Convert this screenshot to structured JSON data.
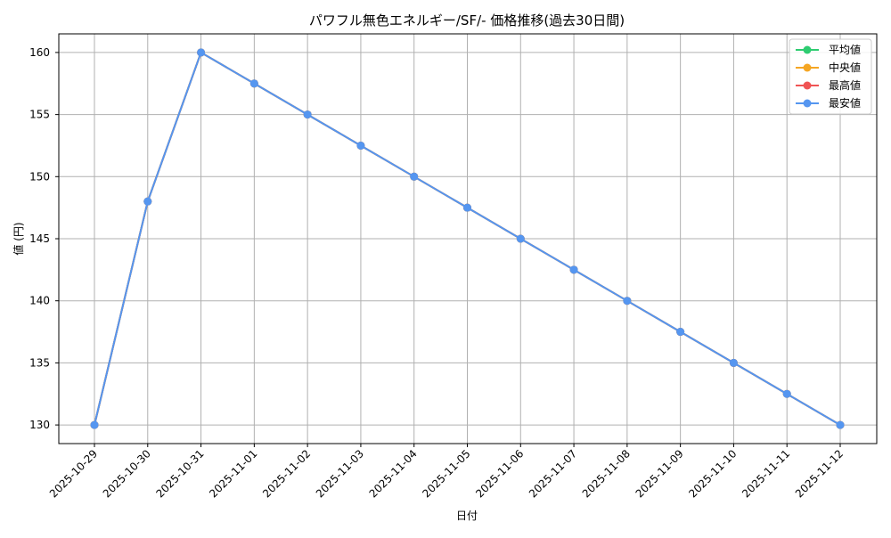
{
  "chart_data": {
    "type": "line",
    "title": "パワフル無色エネルギー/SF/- 価格推移(過去30日間)",
    "xlabel": "日付",
    "ylabel": "値 (円)",
    "x": [
      "2025-10-29",
      "2025-10-30",
      "2025-10-31",
      "2025-11-01",
      "2025-11-02",
      "2025-11-03",
      "2025-11-04",
      "2025-11-05",
      "2025-11-06",
      "2025-11-07",
      "2025-11-08",
      "2025-11-09",
      "2025-11-10",
      "2025-11-11",
      "2025-11-12"
    ],
    "yticks": [
      130,
      135,
      140,
      145,
      150,
      155,
      160
    ],
    "ylim": [
      128.5,
      161.5
    ],
    "grid": true,
    "legend_position": "top-right",
    "series": [
      {
        "name": "平均値",
        "color": "#2ecc71",
        "values": [
          130,
          148,
          160,
          157.5,
          155,
          152.5,
          150,
          147.5,
          145,
          142.5,
          140,
          137.5,
          135,
          132.5,
          130
        ]
      },
      {
        "name": "中央値",
        "color": "#f5a623",
        "values": [
          130,
          148,
          160,
          157.5,
          155,
          152.5,
          150,
          147.5,
          145,
          142.5,
          140,
          137.5,
          135,
          132.5,
          130
        ]
      },
      {
        "name": "最高値",
        "color": "#f05454",
        "values": [
          130,
          148,
          160,
          157.5,
          155,
          152.5,
          150,
          147.5,
          145,
          142.5,
          140,
          137.5,
          135,
          132.5,
          130
        ]
      },
      {
        "name": "最安値",
        "color": "#5596f0",
        "values": [
          130,
          148,
          160,
          157.5,
          155,
          152.5,
          150,
          147.5,
          145,
          142.5,
          140,
          137.5,
          135,
          132.5,
          130
        ]
      }
    ]
  }
}
